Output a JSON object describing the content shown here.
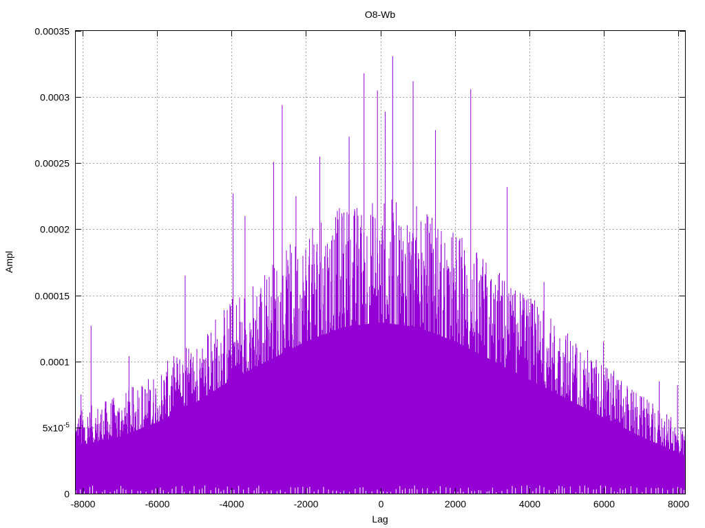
{
  "chart_data": {
    "type": "bar",
    "title": "O8-Wb",
    "xlabel": "Lag",
    "ylabel": "Ampl",
    "xlim": [
      -8192,
      8192
    ],
    "ylim": [
      0,
      0.00035
    ],
    "grid": true,
    "x_ticks": [
      {
        "value": -8000,
        "label": "-8000"
      },
      {
        "value": -6000,
        "label": "-6000"
      },
      {
        "value": -4000,
        "label": "-4000"
      },
      {
        "value": -2000,
        "label": "-2000"
      },
      {
        "value": 0,
        "label": "0"
      },
      {
        "value": 2000,
        "label": "2000"
      },
      {
        "value": 4000,
        "label": "4000"
      },
      {
        "value": 6000,
        "label": "6000"
      },
      {
        "value": 8000,
        "label": "8000"
      }
    ],
    "y_ticks": [
      {
        "value": 0,
        "label": "0"
      },
      {
        "value": 5e-05,
        "label": "5x10",
        "sup": "-5"
      },
      {
        "value": 0.0001,
        "label": "0.0001"
      },
      {
        "value": 0.00015,
        "label": "0.00015"
      },
      {
        "value": 0.0002,
        "label": "0.0002"
      },
      {
        "value": 0.00025,
        "label": "0.00025"
      },
      {
        "value": 0.0003,
        "label": "0.0003"
      },
      {
        "value": 0.00035,
        "label": "0.00035"
      }
    ],
    "series": [
      {
        "color": "#9400d3",
        "envelope": {
          "x": [
            -8192,
            -7000,
            -6000,
            -5000,
            -4000,
            -3000,
            -2000,
            -1000,
            0,
            1000,
            2000,
            3000,
            4000,
            5000,
            6000,
            7000,
            8192
          ],
          "y": [
            5e-05,
            6e-05,
            7.5e-05,
            9.5e-05,
            0.00012,
            0.00014,
            0.00016,
            0.000175,
            0.00018,
            0.000175,
            0.00016,
            0.00014,
            0.00012,
            0.0001,
            8e-05,
            6e-05,
            4e-05
          ]
        },
        "peaks": [
          {
            "x": -8050,
            "y": 7.5e-05
          },
          {
            "x": -7780,
            "y": 0.000127
          },
          {
            "x": -6760,
            "y": 0.000104
          },
          {
            "x": -5250,
            "y": 0.000165
          },
          {
            "x": -3960,
            "y": 0.000227
          },
          {
            "x": -3640,
            "y": 0.00021
          },
          {
            "x": -2870,
            "y": 0.000251
          },
          {
            "x": -2640,
            "y": 0.000294
          },
          {
            "x": -2270,
            "y": 0.000225
          },
          {
            "x": -1630,
            "y": 0.000255
          },
          {
            "x": -840,
            "y": 0.00027
          },
          {
            "x": -440,
            "y": 0.000318
          },
          {
            "x": -80,
            "y": 0.000305
          },
          {
            "x": 130,
            "y": 0.000289
          },
          {
            "x": 330,
            "y": 0.000331
          },
          {
            "x": 880,
            "y": 0.000312
          },
          {
            "x": 1480,
            "y": 0.000275
          },
          {
            "x": 2430,
            "y": 0.000306
          },
          {
            "x": 3410,
            "y": 0.000232
          },
          {
            "x": 4400,
            "y": 0.00016
          },
          {
            "x": 6000,
            "y": 0.000115
          },
          {
            "x": 7500,
            "y": 8.5e-05
          },
          {
            "x": 7990,
            "y": 8.2e-05
          }
        ]
      }
    ]
  }
}
